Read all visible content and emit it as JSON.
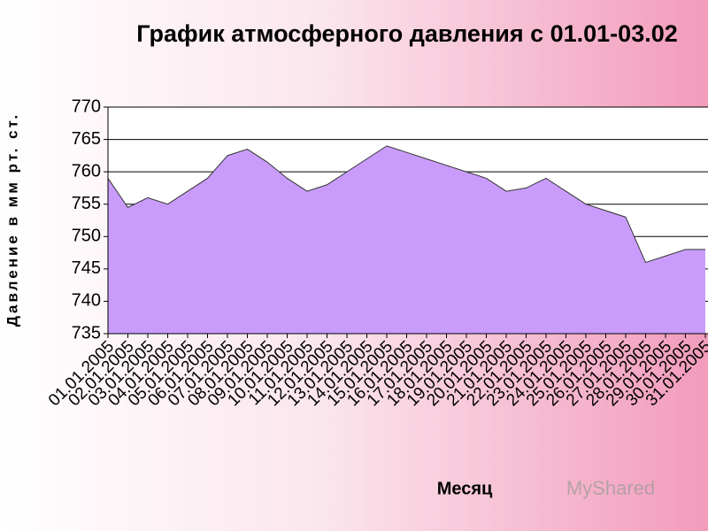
{
  "chart_data": {
    "type": "area",
    "title": "График атмосферного давления с 01.01-03.02",
    "xlabel": "Месяц",
    "ylabel": "Давление в мм рт. ст.",
    "watermark": "MyShared",
    "categories": [
      "01.01.2005",
      "02.01.2005",
      "03.01.2005",
      "04.01.2005",
      "05.01.2005",
      "06.01.2005",
      "07.01.2005",
      "08.01.2005",
      "09.01.2005",
      "10.01.2005",
      "11.01.2005",
      "12.01.2005",
      "13.01.2005",
      "14.01.2005",
      "15.01.2005",
      "16.01.2005",
      "17.01.2005",
      "18.01.2005",
      "19.01.2005",
      "20.01.2005",
      "21.01.2005",
      "22.01.2005",
      "23.01.2005",
      "24.01.2005",
      "25.01.2005",
      "26.01.2005",
      "27.01.2005",
      "28.01.2005",
      "29.01.2005",
      "30.01.2005",
      "31.01.2005"
    ],
    "values": [
      759,
      754.5,
      756,
      755,
      757,
      759,
      762.5,
      763.5,
      761.5,
      759,
      757,
      758,
      760,
      762,
      764,
      763,
      762,
      761,
      760,
      759,
      757,
      757.5,
      759,
      757,
      755,
      754,
      753,
      746,
      747,
      748,
      748
    ],
    "color": "#c99cfb",
    "ylim": [
      735,
      770
    ],
    "yticks": [
      735,
      740,
      745,
      750,
      755,
      760,
      765,
      770
    ],
    "grid": true
  }
}
